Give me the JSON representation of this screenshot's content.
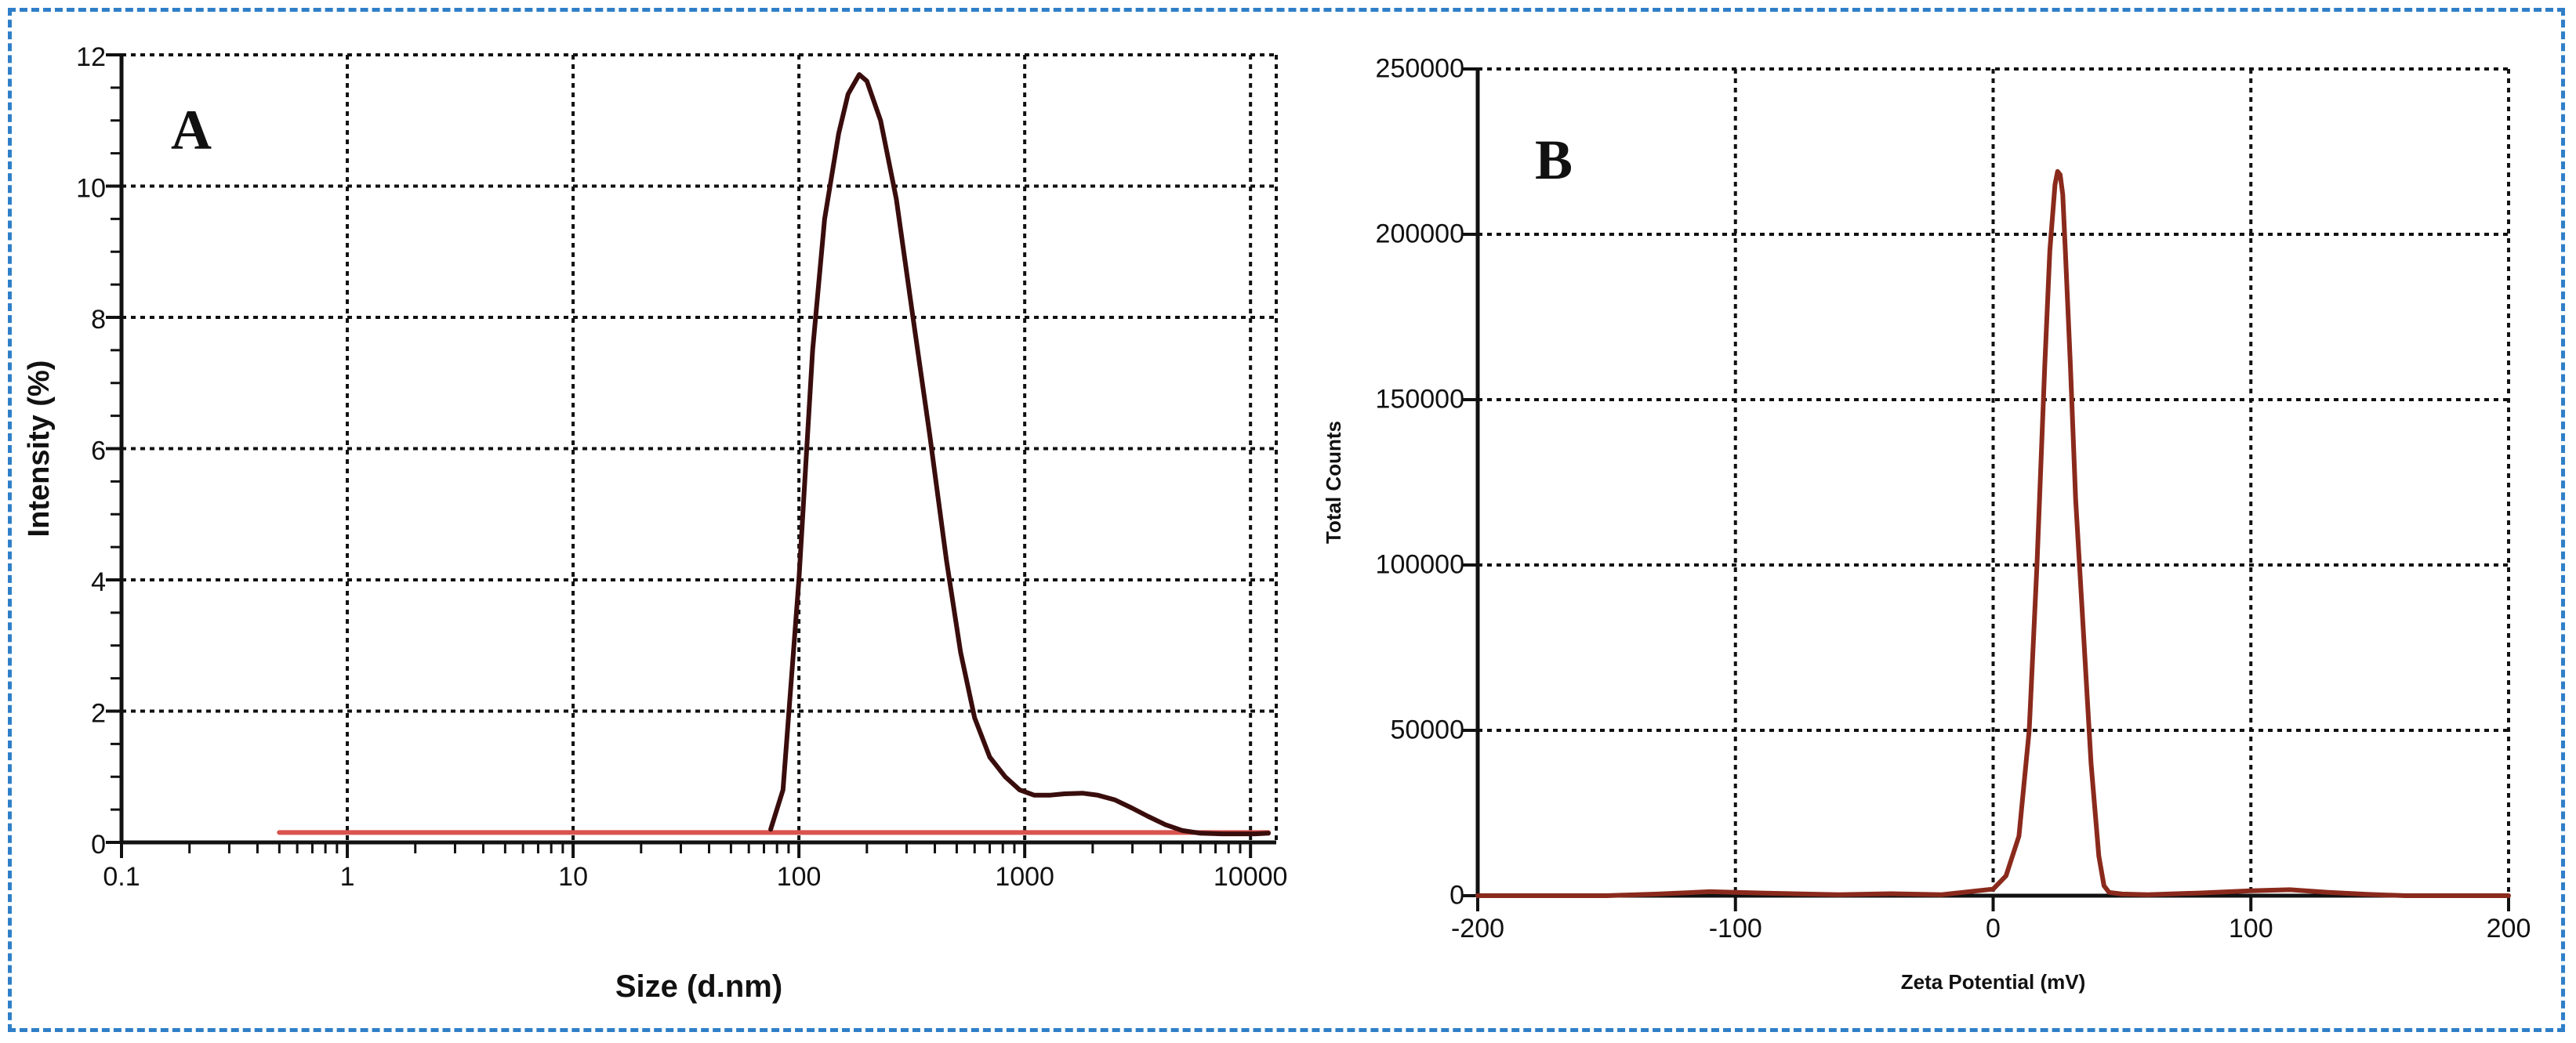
{
  "chart_data": [
    {
      "type": "line",
      "panel_label": "A",
      "xlabel": "Size (d.nm)",
      "ylabel": "Intensity (%)",
      "xscale": "log",
      "xlim": [
        0.1,
        13000
      ],
      "ylim": [
        0,
        12
      ],
      "xticks": [
        0.1,
        1,
        10,
        100,
        1000,
        10000
      ],
      "xtick_labels": [
        "0.1",
        "1",
        "10",
        "100",
        "1000",
        "10000"
      ],
      "yticks": [
        0,
        2,
        4,
        6,
        8,
        10,
        12
      ],
      "ytick_labels": [
        "0",
        "2",
        "4",
        "6",
        "8",
        "10",
        "12"
      ],
      "grid": true,
      "series": [
        {
          "name": "baseline",
          "color": "#d9534f",
          "x": [
            0.5,
            75,
            10000,
            12000
          ],
          "y": [
            0.15,
            0.15,
            0.15,
            0.15
          ]
        },
        {
          "name": "intensity",
          "color": "#3a0d0d",
          "x": [
            75,
            85,
            100,
            115,
            130,
            150,
            165,
            185,
            200,
            230,
            270,
            320,
            380,
            450,
            520,
            600,
            700,
            820,
            950,
            1100,
            1300,
            1500,
            1800,
            2100,
            2500,
            3000,
            3500,
            4200,
            5000,
            6000,
            7500,
            9000,
            10500,
            12000
          ],
          "y": [
            0.2,
            0.8,
            4.0,
            7.5,
            9.5,
            10.8,
            11.4,
            11.7,
            11.6,
            11.0,
            9.8,
            8.0,
            6.2,
            4.3,
            2.9,
            1.9,
            1.3,
            1.0,
            0.8,
            0.72,
            0.72,
            0.74,
            0.75,
            0.72,
            0.65,
            0.52,
            0.4,
            0.27,
            0.18,
            0.14,
            0.13,
            0.13,
            0.13,
            0.14
          ]
        }
      ]
    },
    {
      "type": "line",
      "panel_label": "B",
      "xlabel": "Zeta Potential (mV)",
      "ylabel": "Total Counts",
      "xlim": [
        -200,
        200
      ],
      "ylim": [
        0,
        250000
      ],
      "xticks": [
        -200,
        -100,
        0,
        100,
        200
      ],
      "xtick_labels": [
        "-200",
        "-100",
        "0",
        "100",
        "200"
      ],
      "yticks": [
        0,
        50000,
        100000,
        150000,
        200000,
        250000
      ],
      "ytick_labels": [
        "0",
        "50000",
        "100000",
        "150000",
        "200000",
        "250000"
      ],
      "grid": true,
      "series": [
        {
          "name": "total counts",
          "color": "#8a2a1c",
          "x": [
            -200,
            -150,
            -130,
            -110,
            -90,
            -60,
            -40,
            -20,
            0,
            5,
            10,
            14,
            17,
            20,
            22,
            24,
            25,
            26,
            27,
            28,
            30,
            32,
            35,
            38,
            41,
            43,
            45,
            50,
            60,
            80,
            100,
            115,
            130,
            145,
            160,
            200
          ],
          "y": [
            0,
            0,
            500,
            1200,
            800,
            300,
            600,
            300,
            2000,
            6000,
            18000,
            50000,
            100000,
            160000,
            195000,
            215000,
            219000,
            218000,
            212000,
            195000,
            160000,
            120000,
            80000,
            40000,
            12000,
            3000,
            1000,
            500,
            300,
            800,
            1500,
            1800,
            1000,
            400,
            0,
            0
          ]
        }
      ]
    }
  ]
}
